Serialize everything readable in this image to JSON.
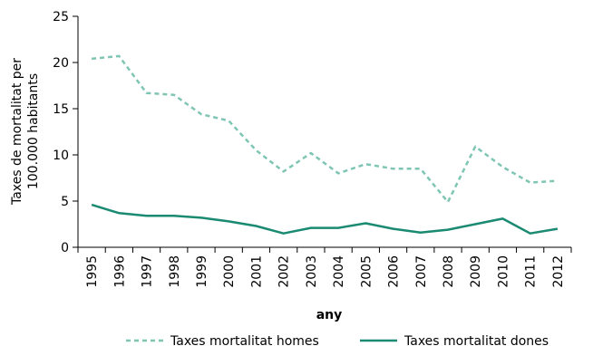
{
  "chart_data": {
    "type": "line",
    "title": "",
    "xlabel": "any",
    "ylabel_lines": [
      "Taxes de mortalitat per",
      "100.000 habitants"
    ],
    "x": [
      "1995",
      "1996",
      "1997",
      "1998",
      "1999",
      "2000",
      "2001",
      "2002",
      "2003",
      "2004",
      "2005",
      "2006",
      "2007",
      "2008",
      "2009",
      "2010",
      "2011",
      "2012"
    ],
    "ylim": [
      0,
      25
    ],
    "yticks": [
      0,
      5,
      10,
      15,
      20,
      25
    ],
    "grid": false,
    "legend_position": "bottom",
    "series": [
      {
        "name": "Taxes mortalitat homes",
        "style": "dashed",
        "color": "#7fc5b3",
        "values": [
          20.4,
          20.7,
          16.7,
          16.5,
          14.4,
          13.7,
          10.5,
          8.2,
          10.2,
          8.0,
          9.0,
          8.5,
          8.5,
          4.9,
          10.9,
          8.7,
          7.0,
          7.2
        ]
      },
      {
        "name": "Taxes mortalitat dones",
        "style": "solid",
        "color": "#1a8a72",
        "values": [
          4.6,
          3.7,
          3.4,
          3.4,
          3.2,
          2.8,
          2.3,
          1.5,
          2.1,
          2.1,
          2.6,
          2.0,
          1.6,
          1.9,
          2.5,
          3.1,
          1.5,
          2.0
        ]
      }
    ]
  }
}
